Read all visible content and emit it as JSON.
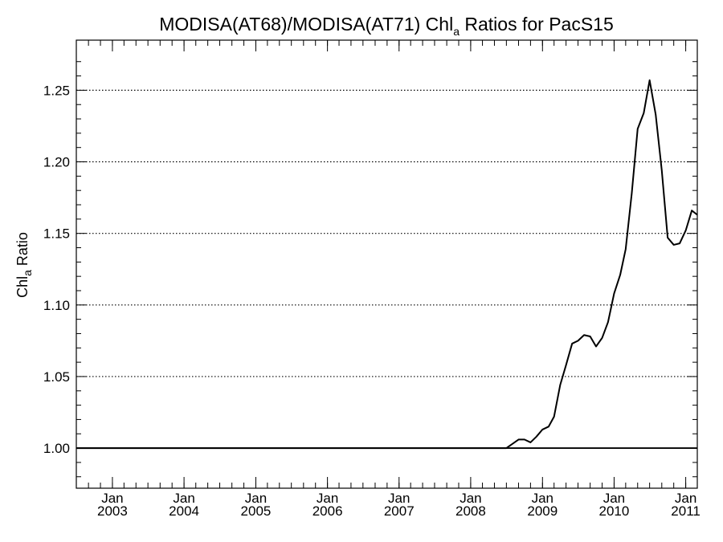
{
  "chart_data": {
    "type": "line",
    "title": {
      "main": "MODISA(AT68)/MODISA(AT71)  Chl",
      "sub": "a",
      "rest": " Ratios for PacS15"
    },
    "xlabel": "",
    "ylabel": {
      "main": "Chl",
      "sub": "a",
      "rest": " Ratio"
    },
    "ylim": [
      0.972,
      1.285
    ],
    "xlim": [
      "2002-07-01",
      "2011-03-01"
    ],
    "yticks": [
      {
        "value": 1.0,
        "label": "1.00"
      },
      {
        "value": 1.05,
        "label": "1.05"
      },
      {
        "value": 1.1,
        "label": "1.10"
      },
      {
        "value": 1.15,
        "label": "1.15"
      },
      {
        "value": 1.2,
        "label": "1.20"
      },
      {
        "value": 1.25,
        "label": "1.25"
      }
    ],
    "xticks": [
      {
        "date": "2003-01-01",
        "month": "Jan",
        "year": "2003"
      },
      {
        "date": "2004-01-01",
        "month": "Jan",
        "year": "2004"
      },
      {
        "date": "2005-01-01",
        "month": "Jan",
        "year": "2005"
      },
      {
        "date": "2006-01-01",
        "month": "Jan",
        "year": "2006"
      },
      {
        "date": "2007-01-01",
        "month": "Jan",
        "year": "2007"
      },
      {
        "date": "2008-01-01",
        "month": "Jan",
        "year": "2008"
      },
      {
        "date": "2009-01-01",
        "month": "Jan",
        "year": "2009"
      },
      {
        "date": "2010-01-01",
        "month": "Jan",
        "year": "2010"
      },
      {
        "date": "2011-01-01",
        "month": "Jan",
        "year": "2011"
      }
    ],
    "grid": "horizontal dotted at y ticks",
    "reference_line": 1.0,
    "series": [
      {
        "color": "#000000",
        "points": [
          [
            "2002-07-01",
            1.0
          ],
          [
            "2008-07-01",
            1.0
          ],
          [
            "2008-09-01",
            1.006
          ],
          [
            "2008-10-01",
            1.006
          ],
          [
            "2008-11-01",
            1.004
          ],
          [
            "2008-12-01",
            1.008
          ],
          [
            "2009-01-01",
            1.013
          ],
          [
            "2009-02-01",
            1.015
          ],
          [
            "2009-03-01",
            1.022
          ],
          [
            "2009-04-01",
            1.044
          ],
          [
            "2009-05-01",
            1.058
          ],
          [
            "2009-06-01",
            1.073
          ],
          [
            "2009-07-01",
            1.075
          ],
          [
            "2009-08-01",
            1.079
          ],
          [
            "2009-09-01",
            1.078
          ],
          [
            "2009-10-01",
            1.071
          ],
          [
            "2009-11-01",
            1.077
          ],
          [
            "2009-12-01",
            1.088
          ],
          [
            "2010-01-01",
            1.108
          ],
          [
            "2010-02-01",
            1.121
          ],
          [
            "2010-03-01",
            1.139
          ],
          [
            "2010-04-01",
            1.178
          ],
          [
            "2010-05-01",
            1.223
          ],
          [
            "2010-06-01",
            1.234
          ],
          [
            "2010-07-01",
            1.257
          ],
          [
            "2010-08-01",
            1.233
          ],
          [
            "2010-09-01",
            1.194
          ],
          [
            "2010-10-01",
            1.147
          ],
          [
            "2010-11-01",
            1.142
          ],
          [
            "2010-12-01",
            1.143
          ],
          [
            "2011-01-01",
            1.152
          ],
          [
            "2011-02-01",
            1.166
          ],
          [
            "2011-03-01",
            1.163
          ]
        ]
      }
    ]
  }
}
